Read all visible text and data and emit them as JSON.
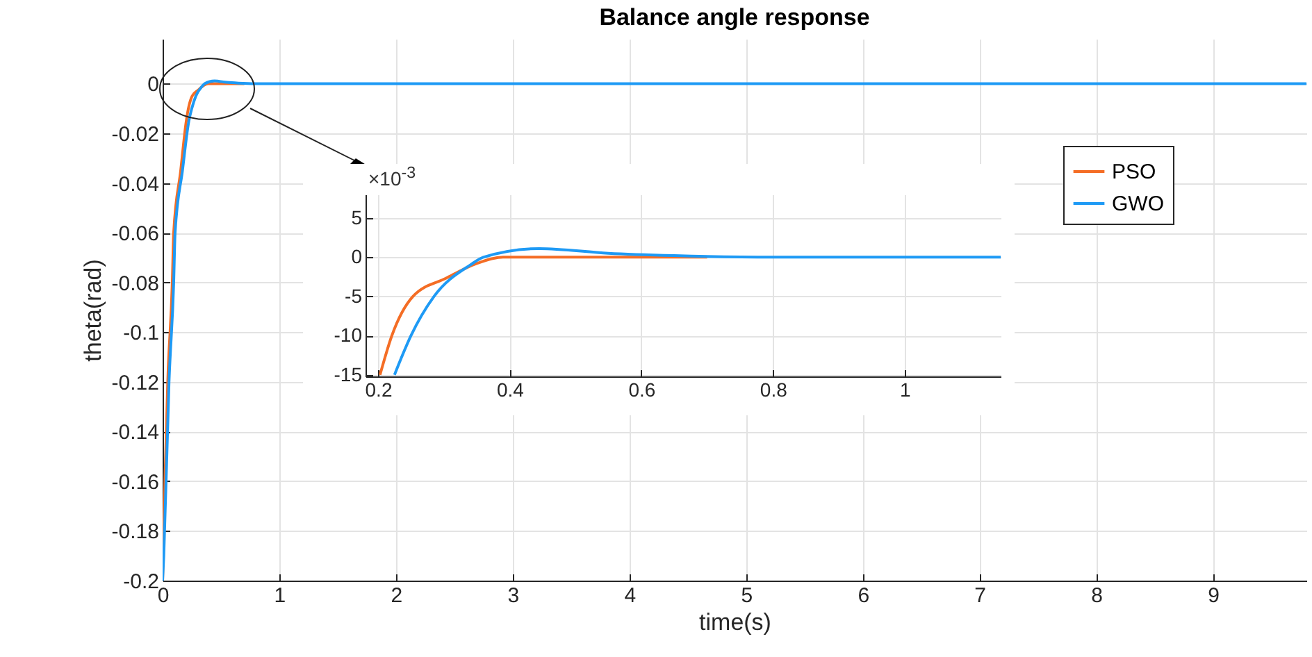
{
  "chart_data": [
    {
      "type": "line",
      "title": "Balance angle response",
      "xlabel": "time(s)",
      "ylabel": "theta(rad)",
      "xlim": [
        0,
        9.8
      ],
      "xticks": [
        0,
        1,
        2,
        3,
        4,
        5,
        6,
        7,
        8,
        9
      ],
      "ylim": [
        -0.2,
        0.018
      ],
      "yticks": [
        -0.2,
        -0.18,
        -0.16,
        -0.14,
        -0.12,
        -0.1,
        -0.08,
        -0.06,
        -0.04,
        -0.02,
        0
      ],
      "grid": true,
      "legend": "top right",
      "series": [
        {
          "name": "PSO",
          "color": "#f46d25",
          "x": [
            0,
            0.02,
            0.044,
            0.083,
            0.095,
            0.155,
            0.203,
            0.221,
            0.253,
            0.303,
            0.35,
            0.39,
            0.5,
            0.7
          ],
          "values": [
            -0.2,
            -0.16,
            -0.12,
            -0.08,
            -0.06,
            -0.035,
            -0.015,
            -0.01,
            -0.005,
            -0.0027,
            -0.0008,
            0,
            0,
            0
          ]
        },
        {
          "name": "GWO",
          "color": "#1e9af5",
          "x": [
            0,
            0.01,
            0.055,
            0.095,
            0.107,
            0.17,
            0.225,
            0.25,
            0.285,
            0.34,
            0.36,
            0.445,
            0.55,
            0.65,
            0.8,
            1,
            2,
            5,
            9.8
          ],
          "values": [
            -0.2,
            -0.19,
            -0.12,
            -0.08,
            -0.06,
            -0.035,
            -0.015,
            -0.01,
            -0.005,
            -0.001,
            0,
            0.0011,
            0.0005,
            0.0002,
            0,
            0,
            0,
            0,
            0
          ]
        }
      ]
    },
    {
      "type": "line",
      "xlim": [
        0.181,
        1.146
      ],
      "xticks": [
        0.2,
        0.4,
        0.6,
        0.8,
        1
      ],
      "ylim": [
        -15.2,
        8
      ],
      "yticks": [
        -15,
        -10,
        -5,
        0,
        5
      ],
      "grid": true,
      "annotations": [
        "×10$^{-3}$"
      ],
      "series": [
        {
          "color": "#f46d25",
          "x": [
            0.203,
            0.221,
            0.253,
            0.303,
            0.35,
            0.39,
            0.5,
            0.7
          ],
          "values": [
            -15,
            -10,
            -5,
            -2.7,
            -0.8,
            0,
            0,
            0
          ]
        },
        {
          "color": "#1e9af5",
          "x": [
            0.225,
            0.25,
            0.285,
            0.34,
            0.36,
            0.445,
            0.55,
            0.65,
            0.8,
            1,
            1.146
          ],
          "values": [
            -15,
            -10,
            -5,
            -1,
            0,
            1.1,
            0.5,
            0.2,
            0,
            0,
            0
          ]
        }
      ]
    }
  ]
}
